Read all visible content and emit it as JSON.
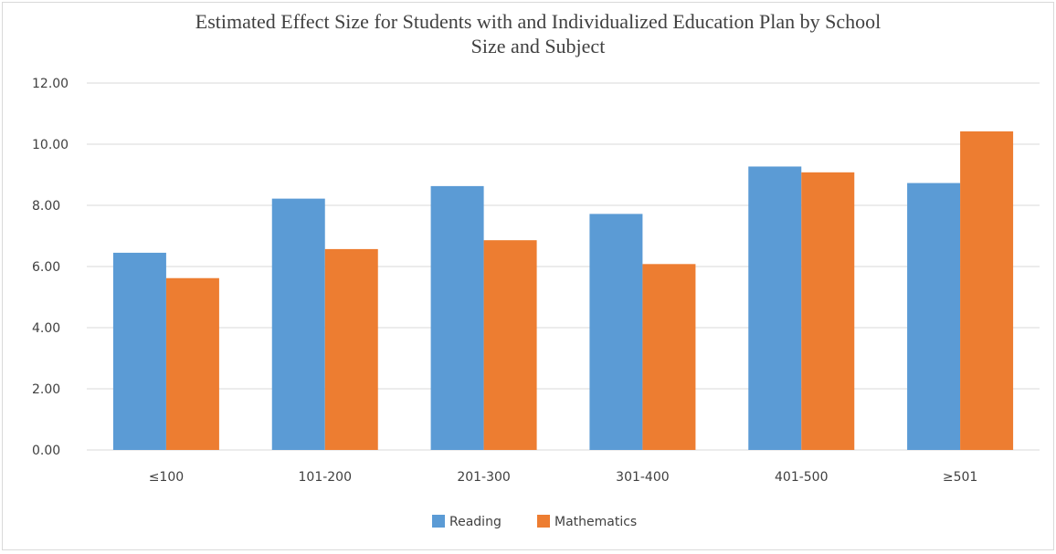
{
  "chart_data": {
    "type": "bar",
    "title_lines": [
      "Estimated Effect Size for Students with and Individualized Education Plan by School",
      "Size and Subject"
    ],
    "categories": [
      "≤100",
      "101-200",
      "201-300",
      "301-400",
      "401-500",
      "≥501"
    ],
    "series": [
      {
        "name": "Reading",
        "color": "#5b9bd5",
        "values": [
          6.45,
          8.22,
          8.63,
          7.72,
          9.27,
          8.73
        ]
      },
      {
        "name": "Mathematics",
        "color": "#ed7d31",
        "values": [
          5.62,
          6.57,
          6.86,
          6.08,
          9.08,
          10.42
        ]
      }
    ],
    "ylim": [
      0,
      12
    ],
    "yticks": [
      "0.00",
      "2.00",
      "4.00",
      "6.00",
      "8.00",
      "10.00",
      "12.00"
    ],
    "grid": true,
    "legend_position": "bottom"
  }
}
